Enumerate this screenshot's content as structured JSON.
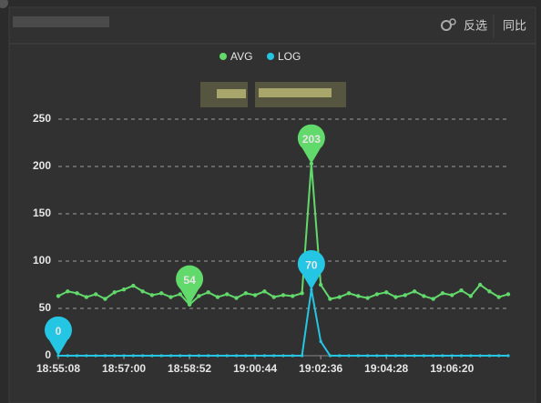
{
  "chart_data": {
    "type": "line",
    "buttons": [
      "反选",
      "同比"
    ],
    "categories": [
      "18:55:08",
      null,
      null,
      null,
      null,
      null,
      null,
      "18:57:00",
      null,
      null,
      null,
      null,
      null,
      null,
      "18:58:52",
      null,
      null,
      null,
      null,
      null,
      null,
      "19:00:44",
      null,
      null,
      null,
      null,
      null,
      null,
      "19:02:36",
      null,
      null,
      null,
      null,
      null,
      null,
      "19:04:28",
      null,
      null,
      null,
      null,
      null,
      null,
      "19:06:20",
      null,
      null,
      null,
      null,
      null,
      null
    ],
    "series": [
      {
        "name": "AVG",
        "color": "#62d96b",
        "values": [
          63,
          68,
          66,
          62,
          65,
          60,
          67,
          70,
          74,
          68,
          64,
          66,
          62,
          65,
          54,
          63,
          67,
          62,
          65,
          61,
          66,
          64,
          68,
          62,
          64,
          63,
          66,
          203,
          75,
          60,
          62,
          66,
          63,
          61,
          65,
          67,
          62,
          64,
          68,
          63,
          60,
          66,
          64,
          69,
          63,
          75,
          68,
          62,
          65
        ]
      },
      {
        "name": "LOG",
        "color": "#25c6e4",
        "values": [
          0,
          0,
          0,
          0,
          0,
          0,
          0,
          0,
          0,
          0,
          0,
          0,
          0,
          0,
          0,
          0,
          0,
          0,
          0,
          0,
          0,
          0,
          0,
          0,
          0,
          0,
          0,
          70,
          15,
          0,
          0,
          0,
          0,
          0,
          0,
          0,
          0,
          0,
          0,
          0,
          0,
          0,
          0,
          0,
          0,
          0,
          0,
          0,
          0
        ]
      }
    ],
    "ylim": [
      0,
      250
    ],
    "yticks": [
      0,
      50,
      100,
      150,
      200,
      250
    ],
    "grid": true,
    "mark_points": [
      "max",
      "min"
    ],
    "legend": "top"
  }
}
